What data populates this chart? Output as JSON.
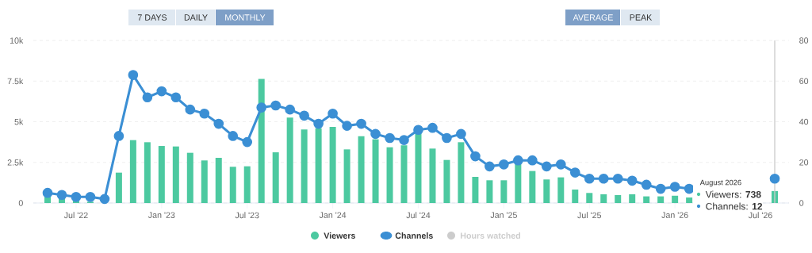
{
  "chart_data": {
    "type": "bar",
    "x": [
      "2022-05",
      "2022-06",
      "2022-07",
      "2022-08",
      "2022-09",
      "2022-10",
      "2022-11",
      "2022-12",
      "2023-01",
      "2023-02",
      "2023-03",
      "2023-04",
      "2023-05",
      "2023-06",
      "2023-07",
      "2023-08",
      "2023-09",
      "2023-10",
      "2023-11",
      "2023-12",
      "2024-01",
      "2024-02",
      "2024-03",
      "2024-04",
      "2024-05",
      "2024-06",
      "2024-07",
      "2024-08",
      "2024-09",
      "2024-10",
      "2024-11",
      "2024-12",
      "2025-01",
      "2025-02",
      "2025-03",
      "2025-04",
      "2025-05",
      "2025-06",
      "2025-07",
      "2025-08",
      "2025-09",
      "2025-10",
      "2025-11",
      "2025-12",
      "2026-01",
      "2026-02",
      "2026-03",
      "2026-04",
      "2026-05",
      "2026-06",
      "2026-07",
      "2026-08"
    ],
    "series": [
      {
        "name": "Viewers",
        "color": "#4cc9a0",
        "values": [
          500,
          300,
          150,
          80,
          null,
          1870,
          3870,
          3740,
          3510,
          3480,
          3090,
          2620,
          2780,
          2230,
          2260,
          7640,
          3120,
          5250,
          4520,
          4600,
          4680,
          3300,
          4110,
          3920,
          3430,
          3550,
          4360,
          3350,
          2650,
          3740,
          1610,
          1400,
          1400,
          2450,
          1970,
          1450,
          1580,
          830,
          620,
          540,
          490,
          540,
          410,
          410,
          450,
          340,
          null,
          null,
          null,
          null,
          null,
          738
        ]
      },
      {
        "name": "Channels",
        "type": "line",
        "axis": "y2",
        "color": "#3b8fd4",
        "marker": "circle",
        "line_style": "solid",
        "values": [
          5,
          4,
          3,
          3,
          2,
          33,
          63,
          52,
          55,
          52,
          46,
          44,
          39,
          33,
          30,
          47,
          48,
          46,
          43,
          39,
          44,
          38,
          39,
          34,
          32,
          31,
          36,
          37,
          32,
          34,
          23,
          18,
          19,
          21,
          21,
          18,
          19,
          15,
          12,
          12,
          12,
          11,
          9,
          7,
          8,
          7,
          null,
          null,
          null,
          null,
          null,
          12
        ]
      },
      {
        "name": "Hours watched",
        "type": "line",
        "color": "#cccccc",
        "values": [
          null,
          null,
          null,
          null,
          null,
          null,
          null,
          null,
          null,
          null,
          null,
          null,
          null,
          null,
          null,
          null,
          null,
          null,
          null,
          null,
          null,
          null,
          null,
          null,
          null,
          null,
          null,
          null,
          null,
          null,
          null,
          null,
          null,
          null,
          null,
          null,
          null,
          null,
          null,
          null,
          null,
          null,
          null,
          null,
          null,
          null,
          null,
          null,
          null,
          null,
          null,
          null
        ]
      }
    ],
    "xlim": [
      "2022-04",
      "2026-09"
    ],
    "xticks": [
      {
        "value": "2022-07",
        "label": "Jul '22"
      },
      {
        "value": "2023-01",
        "label": "Jan '23"
      },
      {
        "value": "2023-07",
        "label": "Jul '23"
      },
      {
        "value": "2024-01",
        "label": "Jan '24"
      },
      {
        "value": "2024-07",
        "label": "Jul '24"
      },
      {
        "value": "2025-01",
        "label": "Jan '25"
      },
      {
        "value": "2025-07",
        "label": "Jul '25"
      },
      {
        "value": "2026-01",
        "label": "Jan '26"
      },
      {
        "value": "2026-07",
        "label": "Jul '26"
      }
    ],
    "ylim": [
      0,
      10000
    ],
    "yticks": [
      0,
      {
        "value": 2500,
        "label": "2.5k"
      },
      {
        "value": 5000,
        "label": "5k"
      },
      {
        "value": 7500,
        "label": "7.5k"
      },
      {
        "value": 10000,
        "label": "10k"
      }
    ],
    "y2lim": [
      0,
      80
    ],
    "y2ticks": [
      0,
      20,
      40,
      60,
      80
    ],
    "ref_lines": [
      {
        "axis": "x",
        "value": "2026-08",
        "color": "#cccccc"
      }
    ],
    "grid": "y",
    "legend": "bottom",
    "annotations": [
      "7 DAYS",
      "DAILY",
      "MONTHLY",
      "AVERAGE",
      "PEAK",
      "August 2026",
      "Viewers: **738**",
      "Channels: **12**"
    ]
  }
}
